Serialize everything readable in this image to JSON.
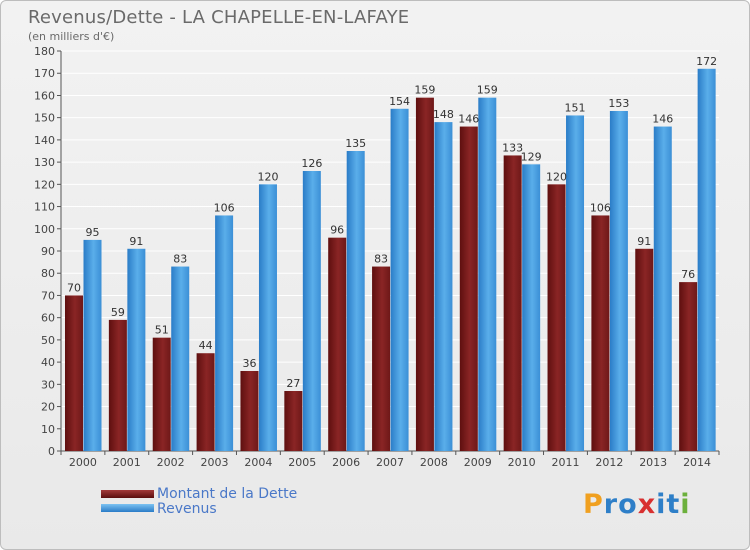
{
  "title": "Revenus/Dette - LA CHAPELLE-EN-LAFAYE",
  "subtitle": "(en milliers d'€)",
  "colors": {
    "dette": "#7b1c1c",
    "revenus": "#3d95da"
  },
  "chart_data": {
    "type": "bar",
    "categories": [
      "2000",
      "2001",
      "2002",
      "2003",
      "2004",
      "2005",
      "2006",
      "2007",
      "2008",
      "2009",
      "2010",
      "2011",
      "2012",
      "2013",
      "2014"
    ],
    "series": [
      {
        "name": "Montant de la Dette",
        "values": [
          70,
          59,
          51,
          44,
          36,
          27,
          96,
          83,
          159,
          146,
          133,
          120,
          106,
          91,
          76
        ]
      },
      {
        "name": "Revenus",
        "values": [
          95,
          91,
          83,
          106,
          120,
          126,
          135,
          154,
          148,
          159,
          129,
          151,
          153,
          146,
          172
        ]
      }
    ],
    "ylim": [
      0,
      180
    ],
    "yticks": [
      0,
      10,
      20,
      30,
      40,
      50,
      60,
      70,
      80,
      90,
      100,
      110,
      120,
      130,
      140,
      150,
      160,
      170,
      180
    ],
    "grid": true,
    "legend_position": "bottom-left"
  },
  "legend": {
    "dette_label": "Montant de la Dette",
    "revenus_label": "Revenus"
  },
  "logo": {
    "letters": [
      "P",
      "r",
      "o",
      "x",
      "i",
      "t",
      "i"
    ],
    "colors": [
      "#f0a020",
      "#2e7fc8",
      "#2e7fc8",
      "#d83030",
      "#2e7fc8",
      "#2e7fc8",
      "#6cb03c"
    ]
  }
}
